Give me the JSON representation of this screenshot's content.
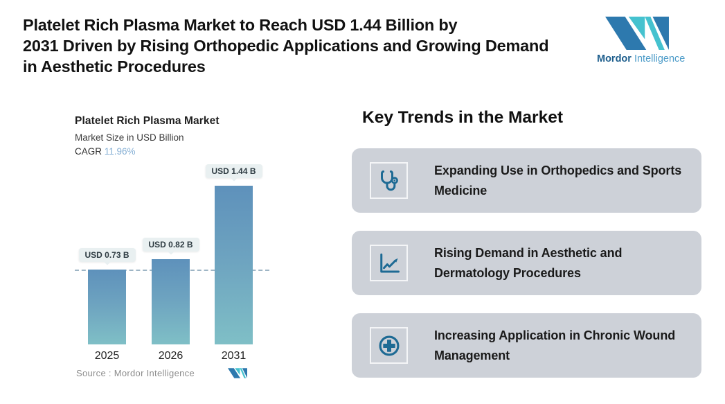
{
  "header": {
    "title_lines": [
      "Platelet Rich Plasma Market to Reach USD 1.44 Billion by",
      "2031 Driven by Rising Orthopedic Applications and Growing Demand",
      "in Aesthetic Procedures"
    ],
    "brand": {
      "word1": "Mordor",
      "word2": "Intelligence"
    }
  },
  "chart_data": {
    "type": "bar",
    "title": "Platelet Rich Plasma Market",
    "subtitle": "Market Size in USD Billion",
    "cagr_label": "CAGR",
    "cagr_value": "11.96%",
    "categories": [
      "2025",
      "2026",
      "2031"
    ],
    "values": [
      0.73,
      0.82,
      1.44
    ],
    "value_labels": [
      "USD 0.73 B",
      "USD 0.82 B",
      "USD 1.44 B"
    ],
    "dashed_reference_value": 0.73,
    "ylim": [
      0.1,
      1.65
    ],
    "grid": false,
    "source_label": "Source :  Mordor Intelligence"
  },
  "trends": {
    "heading": "Key Trends in the Market",
    "items": [
      {
        "icon": "stethoscope-icon",
        "text": "Expanding Use in Orthopedics and Sports Medicine"
      },
      {
        "icon": "trend-line-chart-icon",
        "text": "Rising Demand in Aesthetic and Dermatology Procedures"
      },
      {
        "icon": "medical-cross-icon",
        "text": "Increasing Application in Chronic Wound Management"
      }
    ]
  },
  "colors": {
    "bar_gradient_top": "#5e91bb",
    "bar_gradient_bottom": "#7fbfc6",
    "card_background": "#cdd1d8",
    "trend_icon_blue": "#1d6a94",
    "brand_dark_blue": "#2d79ae",
    "brand_teal": "#45c2cf",
    "cagr_value_blue": "#85afd4",
    "value_chip_background": "#e9f0f1",
    "dashed_line": "#9eb5c5",
    "source_text_gray": "#8c8c8c"
  }
}
